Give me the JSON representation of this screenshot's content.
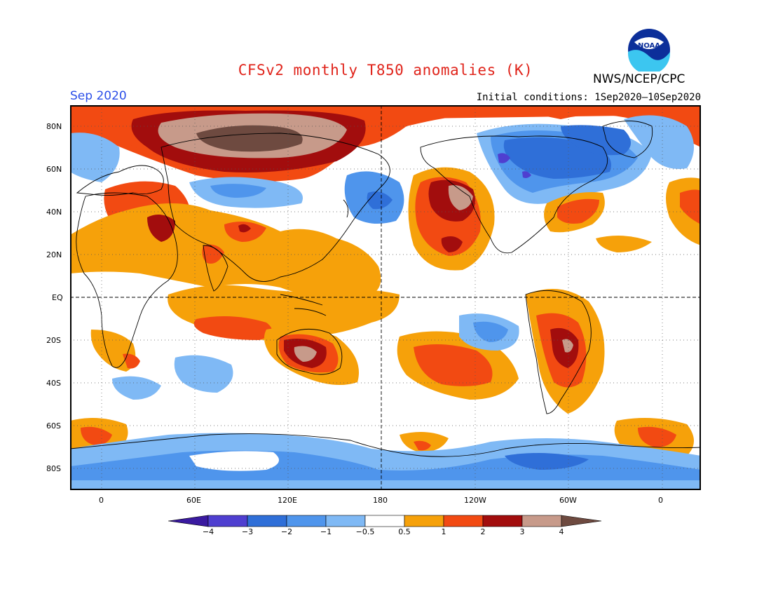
{
  "title": "CFSv2 monthly T850 anomalies (K)",
  "valid_month": "Sep 2020",
  "initial_conditions": "Initial conditions: 1Sep2020–10Sep2020",
  "agency": "NWS/NCEP/CPC",
  "logo_text": "NOAA",
  "lat_labels": [
    "80N",
    "60N",
    "40N",
    "20N",
    "EQ",
    "20S",
    "40S",
    "60S",
    "80S"
  ],
  "lon_labels": [
    "0",
    "60E",
    "120E",
    "180",
    "120W",
    "60W",
    "0"
  ],
  "colorbar": {
    "labels": [
      "−4",
      "−3",
      "−2",
      "−1",
      "−0.5",
      "0.5",
      "1",
      "2",
      "3",
      "4"
    ],
    "colors": [
      "#3a1aa0",
      "#4f3fd0",
      "#2f6fd8",
      "#4f95ec",
      "#7fb9f5",
      "#ffffff",
      "#f6a10a",
      "#f24a12",
      "#a20d0d",
      "#c79a8a",
      "#6e4a40"
    ]
  },
  "chart_data": {
    "type": "heatmap",
    "variable": "T850 anomalies",
    "units": "K",
    "contour_levels": [
      -4,
      -3,
      -2,
      -1,
      -0.5,
      0.5,
      1,
      2,
      3,
      4
    ],
    "lat_range": [
      "80S",
      "80N"
    ],
    "lon_range": [
      "0",
      "0"
    ],
    "grid": true
  }
}
